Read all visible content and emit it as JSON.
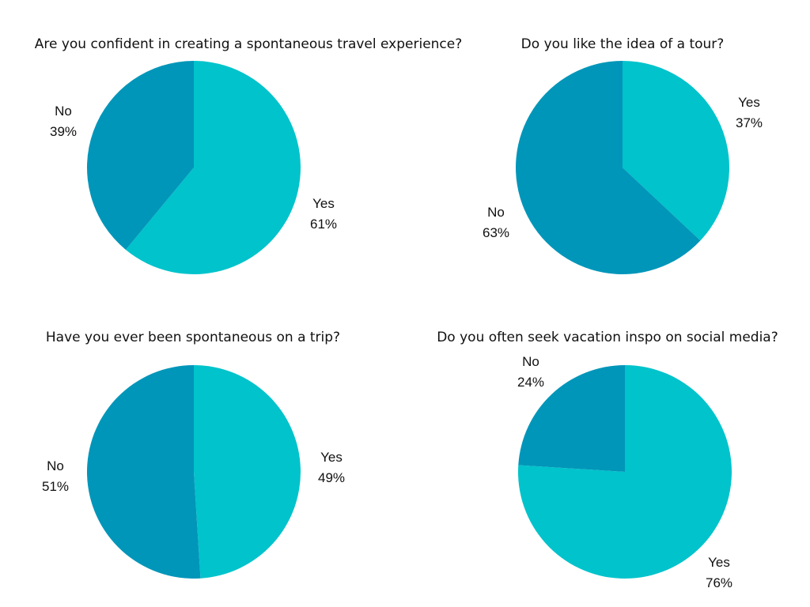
{
  "chart_data": [
    {
      "type": "pie",
      "title": "Are you confident in creating a spontaneous travel experience?",
      "labels": [
        "Yes",
        "No"
      ],
      "values": [
        61,
        39
      ],
      "value_labels": [
        "61%",
        "39%"
      ],
      "colors": [
        "#00c3cb",
        "#0096b9"
      ]
    },
    {
      "type": "pie",
      "title": "Do you like the idea of a tour?",
      "labels": [
        "Yes",
        "No"
      ],
      "values": [
        37,
        63
      ],
      "value_labels": [
        "37%",
        "63%"
      ],
      "colors": [
        "#00c3cb",
        "#0096b9"
      ]
    },
    {
      "type": "pie",
      "title": "Have you ever been spontaneous on a trip?",
      "labels": [
        "Yes",
        "No"
      ],
      "values": [
        49,
        51
      ],
      "value_labels": [
        "49%",
        "51%"
      ],
      "colors": [
        "#00c3cb",
        "#0096b9"
      ]
    },
    {
      "type": "pie",
      "title": "Do you often seek vacation inspo on social media?",
      "labels": [
        "Yes",
        "No"
      ],
      "values": [
        76,
        24
      ],
      "value_labels": [
        "76%",
        "24%"
      ],
      "colors": [
        "#00c3cb",
        "#0096b9"
      ]
    }
  ]
}
